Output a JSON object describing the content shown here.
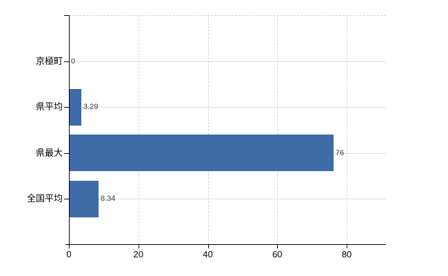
{
  "figure": {
    "background": "#ffffff"
  },
  "chart_data": {
    "type": "bar",
    "orientation": "horizontal",
    "title": "",
    "xlabel": "",
    "ylabel": "",
    "categories": [
      "京極町",
      "県平均",
      "県最大",
      "全国平均"
    ],
    "values": [
      0,
      3.29,
      76,
      8.34
    ],
    "value_labels": [
      "0",
      "3.29",
      "76",
      "8.34"
    ],
    "x_ticks": [
      0,
      20,
      40,
      60,
      80
    ],
    "x_tick_labels": [
      "0",
      "20",
      "40",
      "60",
      "80"
    ],
    "xlim": [
      0,
      91.3
    ],
    "grid": true,
    "legend": false,
    "bar_color": "#3d6ca6",
    "grid_color": "#d7ded4",
    "axis_color": "#000000",
    "value_label_color": "#3c3c3c",
    "tick_label_color": "#000000"
  }
}
